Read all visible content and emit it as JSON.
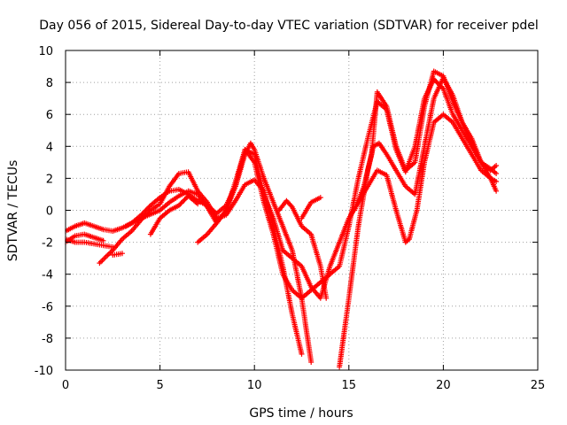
{
  "chart_data": {
    "type": "scatter",
    "title": "Day 056 of 2015, Sidereal Day-to-day VTEC variation (SDTVAR) for receiver pdel",
    "xlabel": "GPS time / hours",
    "ylabel": "SDTVAR / TECUs",
    "xlim": [
      0,
      25
    ],
    "ylim": [
      -10,
      10
    ],
    "xticks": [
      "0",
      "5",
      "10",
      "15",
      "20",
      "25"
    ],
    "yticks": [
      "-10",
      "-8",
      "-6",
      "-4",
      "-2",
      "0",
      "2",
      "4",
      "6",
      "8",
      "10"
    ],
    "grid": "dotted",
    "marker": "plus",
    "color": "#ff0000",
    "series": [
      {
        "values": [
          [
            0,
            -1.3
          ],
          [
            0.5,
            -1.0
          ],
          [
            1.0,
            -0.8
          ],
          [
            1.5,
            -1.0
          ],
          [
            2.0,
            -1.2
          ],
          [
            2.5,
            -1.3
          ],
          [
            3.0,
            -1.1
          ],
          [
            3.5,
            -0.8
          ],
          [
            4.0,
            -0.3
          ],
          [
            4.5,
            0.3
          ],
          [
            5.0,
            0.8
          ],
          [
            5.5,
            1.2
          ],
          [
            6.0,
            1.3
          ],
          [
            6.5,
            1.0
          ],
          [
            7.0,
            0.6
          ],
          [
            7.5,
            0.3
          ],
          [
            8.0,
            -0.2
          ],
          [
            8.5,
            0.3
          ],
          [
            9.0,
            1.5
          ],
          [
            9.5,
            3.5
          ],
          [
            9.8,
            4.2
          ],
          [
            10.0,
            3.8
          ],
          [
            10.5,
            2.0
          ],
          [
            11.0,
            0.5
          ],
          [
            11.5,
            -1.0
          ],
          [
            12.0,
            -2.5
          ],
          [
            12.5,
            -5.5
          ],
          [
            13.0,
            -9.5
          ]
        ]
      },
      {
        "values": [
          [
            0,
            -1.8
          ],
          [
            0.5,
            -2.0
          ],
          [
            1.0,
            -2.0
          ],
          [
            1.5,
            -2.1
          ],
          [
            2.0,
            -2.2
          ],
          [
            2.5,
            -2.3
          ]
        ]
      },
      {
        "values": [
          [
            2.5,
            -2.8
          ],
          [
            3.0,
            -2.7
          ]
        ]
      },
      {
        "values": [
          [
            0,
            -2.0
          ],
          [
            0.5,
            -1.6
          ],
          [
            1.0,
            -1.5
          ],
          [
            1.5,
            -1.7
          ],
          [
            2.0,
            -1.9
          ]
        ]
      },
      {
        "values": [
          [
            1.8,
            -3.3
          ],
          [
            2.5,
            -2.5
          ],
          [
            3.0,
            -1.8
          ],
          [
            3.5,
            -1.3
          ],
          [
            4.0,
            -0.6
          ],
          [
            4.5,
            0.0
          ],
          [
            5.0,
            0.4
          ],
          [
            5.5,
            1.5
          ],
          [
            6.0,
            2.3
          ],
          [
            6.5,
            2.4
          ],
          [
            7.0,
            1.2
          ],
          [
            7.5,
            0.5
          ],
          [
            8.0,
            -0.5
          ],
          [
            8.5,
            -0.3
          ],
          [
            9.0,
            0.6
          ],
          [
            9.5,
            1.6
          ],
          [
            10.0,
            1.9
          ],
          [
            10.5,
            1.2
          ],
          [
            11.0,
            -1.0
          ],
          [
            11.5,
            -3.5
          ],
          [
            12.0,
            -6.5
          ],
          [
            12.5,
            -9.0
          ]
        ]
      },
      {
        "values": [
          [
            3.2,
            -1.0
          ],
          [
            4.0,
            -0.5
          ],
          [
            5.0,
            0.0
          ],
          [
            5.5,
            0.5
          ],
          [
            6.0,
            0.9
          ],
          [
            6.5,
            1.2
          ],
          [
            7.0,
            1.0
          ],
          [
            7.5,
            0.2
          ],
          [
            8.0,
            -0.8
          ],
          [
            8.5,
            0.0
          ],
          [
            9.0,
            1.8
          ],
          [
            9.5,
            3.8
          ],
          [
            10.0,
            3.0
          ],
          [
            10.5,
            0.5
          ],
          [
            11.0,
            -1.5
          ],
          [
            11.5,
            -4.0
          ],
          [
            12.0,
            -5.0
          ],
          [
            12.5,
            -5.5
          ],
          [
            13.0,
            -5.0
          ],
          [
            13.5,
            -4.5
          ],
          [
            14.0,
            -4.0
          ],
          [
            14.5,
            -3.5
          ],
          [
            15.0,
            -1.0
          ],
          [
            15.5,
            2.0
          ],
          [
            16.0,
            4.5
          ],
          [
            16.5,
            6.8
          ],
          [
            17.0,
            6.3
          ],
          [
            17.5,
            3.8
          ],
          [
            18.0,
            2.4
          ],
          [
            18.5,
            4.0
          ],
          [
            19.0,
            7.0
          ],
          [
            19.5,
            8.2
          ],
          [
            20.0,
            7.6
          ],
          [
            20.5,
            6.0
          ],
          [
            21.0,
            5.0
          ],
          [
            21.5,
            4.0
          ],
          [
            22.0,
            3.0
          ],
          [
            22.5,
            2.6
          ],
          [
            22.8,
            2.3
          ]
        ]
      },
      {
        "values": [
          [
            4.5,
            -1.5
          ],
          [
            5.0,
            -0.5
          ],
          [
            5.5,
            0.0
          ],
          [
            6.0,
            0.3
          ],
          [
            6.5,
            0.9
          ],
          [
            7.0,
            0.4
          ]
        ]
      },
      {
        "values": [
          [
            7.0,
            -2.0
          ],
          [
            7.5,
            -1.5
          ],
          [
            8.0,
            -0.8
          ],
          [
            8.5,
            0.0
          ],
          [
            9.0,
            1.5
          ],
          [
            9.5,
            3.8
          ],
          [
            10.0,
            3.5
          ],
          [
            10.5,
            1.0
          ],
          [
            11.0,
            -0.5
          ],
          [
            11.5,
            -2.5
          ],
          [
            12.0,
            -3.0
          ],
          [
            12.5,
            -3.5
          ],
          [
            13.0,
            -4.8
          ],
          [
            13.5,
            -5.5
          ],
          [
            14.0,
            -3.5
          ],
          [
            14.5,
            -2.0
          ],
          [
            15.0,
            -0.5
          ],
          [
            15.5,
            0.5
          ],
          [
            16.0,
            1.5
          ],
          [
            16.5,
            2.5
          ],
          [
            17.0,
            2.2
          ],
          [
            17.5,
            0.0
          ],
          [
            18.0,
            -2.0
          ],
          [
            18.2,
            -1.8
          ],
          [
            18.6,
            0.0
          ],
          [
            19.0,
            3.0
          ],
          [
            19.5,
            5.5
          ],
          [
            20.0,
            6.0
          ],
          [
            20.5,
            5.5
          ],
          [
            21.0,
            4.5
          ],
          [
            21.5,
            3.5
          ],
          [
            22.0,
            2.5
          ],
          [
            22.5,
            2.0
          ],
          [
            22.8,
            1.2
          ]
        ]
      },
      {
        "values": [
          [
            11.3,
            0.0
          ],
          [
            11.7,
            0.6
          ],
          [
            12.0,
            0.2
          ],
          [
            12.5,
            -1.0
          ],
          [
            13.0,
            -1.5
          ],
          [
            13.5,
            -3.5
          ],
          [
            13.8,
            -5.5
          ]
        ]
      },
      {
        "values": [
          [
            12.5,
            -0.5
          ],
          [
            13.0,
            0.5
          ],
          [
            13.5,
            0.8
          ]
        ]
      },
      {
        "values": [
          [
            14.5,
            -9.8
          ],
          [
            15.0,
            -5.5
          ],
          [
            15.5,
            -1.0
          ],
          [
            16.0,
            2.5
          ],
          [
            16.3,
            4.0
          ],
          [
            16.6,
            4.2
          ],
          [
            17.0,
            3.5
          ],
          [
            17.5,
            2.5
          ],
          [
            18.0,
            1.5
          ],
          [
            18.5,
            1.0
          ],
          [
            19.0,
            4.0
          ],
          [
            19.5,
            7.0
          ],
          [
            20.0,
            8.3
          ],
          [
            20.5,
            7.2
          ],
          [
            21.0,
            5.5
          ],
          [
            21.5,
            4.5
          ],
          [
            22.0,
            3.0
          ],
          [
            22.5,
            2.0
          ],
          [
            22.8,
            1.8
          ]
        ]
      },
      {
        "values": [
          [
            15.3,
            0.0
          ],
          [
            15.8,
            1.5
          ],
          [
            16.2,
            3.5
          ],
          [
            16.5,
            7.4
          ],
          [
            17.0,
            6.5
          ],
          [
            17.5,
            4.0
          ],
          [
            18.0,
            2.5
          ],
          [
            18.5,
            3.0
          ],
          [
            19.0,
            6.5
          ],
          [
            19.5,
            8.7
          ],
          [
            20.0,
            8.4
          ],
          [
            20.5,
            6.8
          ],
          [
            21.0,
            5.5
          ],
          [
            21.5,
            4.2
          ],
          [
            22.0,
            3.0
          ],
          [
            22.5,
            2.5
          ],
          [
            22.8,
            2.8
          ]
        ]
      }
    ]
  }
}
